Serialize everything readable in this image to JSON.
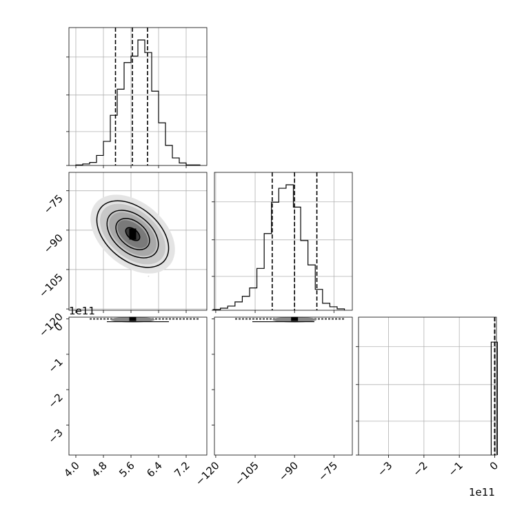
{
  "chart_data": {
    "type": "corner",
    "grid": true,
    "params": [
      {
        "ticks": [
          "4.0",
          "4.8",
          "5.6",
          "6.4",
          "7.2"
        ],
        "tick_values": [
          4.0,
          4.8,
          5.6,
          6.4,
          7.2
        ],
        "range": [
          3.8,
          7.8
        ]
      },
      {
        "ticks": [
          "−120",
          "−105",
          "−90",
          "−75"
        ],
        "tick_values": [
          -120,
          -105,
          -90,
          -75
        ],
        "range": [
          -120.5,
          -68
        ]
      },
      {
        "ticks": [
          "−3",
          "−2",
          "−1",
          "0"
        ],
        "tick_values": [
          -3,
          -2,
          -1,
          0
        ],
        "range": [
          -3.85,
          0.05
        ],
        "offset_label": "1e11"
      }
    ],
    "y_tick_labels": {
      "row1": [
        "−75",
        "−90",
        "−105",
        "−120"
      ],
      "row2": [
        "0",
        "−1",
        "−2",
        "−3"
      ],
      "row2_offset_label": "1e11"
    },
    "diagonal_histograms": [
      {
        "param": 0,
        "bin_edges_range": [
          4.0,
          7.6
        ],
        "counts": [
          1,
          3,
          6,
          20,
          48,
          100,
          152,
          205,
          218,
          250,
          225,
          148,
          85,
          40,
          15,
          5,
          1,
          1
        ],
        "quantiles": [
          5.15,
          5.64,
          6.08
        ]
      },
      {
        "param": 1,
        "bin_edges_range": [
          -121,
          -71
        ],
        "counts": [
          1,
          3,
          6,
          12,
          20,
          32,
          60,
          110,
          155,
          175,
          180,
          148,
          100,
          65,
          30,
          10,
          5,
          2
        ],
        "quantiles": [
          -98.5,
          -90,
          -81.5
        ]
      },
      {
        "param": 2,
        "counts_note": "all mass in the bin at 0",
        "counts": [
          0,
          0,
          0,
          0,
          0,
          0,
          0,
          0,
          0,
          1
        ],
        "quantiles": [
          0,
          0,
          0
        ]
      }
    ],
    "pair_plots": [
      {
        "x_param": 0,
        "y_param": 1,
        "center": [
          5.65,
          -91.5
        ],
        "contour_levels": [
          "0.5σ",
          "1σ",
          "1.5σ",
          "2σ"
        ],
        "correlation": "negative"
      },
      {
        "x_param": 0,
        "y_param": 2,
        "note": "collapsed at 0"
      },
      {
        "x_param": 1,
        "y_param": 2,
        "note": "collapsed at 0"
      }
    ]
  }
}
